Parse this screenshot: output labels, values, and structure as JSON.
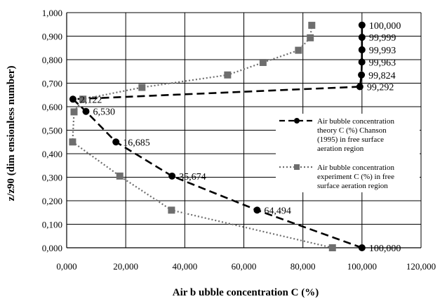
{
  "chart_data": {
    "type": "line",
    "xlabel": "Air b ubble concentration C (%)",
    "ylabel": "z/z90 (dim ensionless number)",
    "xlim": [
      0,
      120000
    ],
    "ylim": [
      0,
      1000
    ],
    "x_ticks": [
      0,
      20000,
      40000,
      60000,
      80000,
      100000,
      120000
    ],
    "y_ticks": [
      0,
      100,
      200,
      300,
      400,
      500,
      600,
      700,
      800,
      900,
      1000
    ],
    "x_tick_labels": [
      "0,000",
      "20,000",
      "40,000",
      "60,000",
      "80,000",
      "100,000",
      "120,000"
    ],
    "y_tick_labels": [
      "0,000",
      "0,100",
      "0,200",
      "0,300",
      "0,400",
      "0,500",
      "0,600",
      "0,700",
      "0,800",
      "0,900",
      "1,000"
    ],
    "grid": "major-both",
    "legend_position": "right",
    "series": [
      {
        "name": "Air bubble concentration theory C (%) Chanson (1995) in free surface aeration region",
        "legend_lines": [
          "Air bubble concentration",
          "theory C (%) Chanson",
          "(1995) in free surface",
          "aeration region"
        ],
        "style": "dashed",
        "marker": "circle",
        "color": "#000000",
        "points": [
          {
            "x": 100000,
            "y": 0,
            "label": "100,000"
          },
          {
            "x": 64494,
            "y": 160,
            "label": "64,494"
          },
          {
            "x": 35674,
            "y": 305,
            "label": "35,674"
          },
          {
            "x": 16685,
            "y": 450,
            "label": "16,685"
          },
          {
            "x": 6530,
            "y": 580,
            "label": "6,530"
          },
          {
            "x": 2122,
            "y": 632,
            "label": "2,122"
          },
          {
            "x": 99292,
            "y": 685,
            "label": "99,292"
          },
          {
            "x": 99824,
            "y": 735,
            "label": "99,824"
          },
          {
            "x": 99963,
            "y": 790,
            "label": "99,963"
          },
          {
            "x": 99993,
            "y": 842,
            "label": "99,993"
          },
          {
            "x": 99999,
            "y": 895,
            "label": "99,999"
          },
          {
            "x": 100000,
            "y": 947,
            "label": "100,000"
          }
        ]
      },
      {
        "name": "Air bubble concentration experiment C (%) in free surface aeration region",
        "legend_lines": [
          "Air bubble concentration",
          "experiment C (%) in free",
          "surface aeration region"
        ],
        "style": "dotted",
        "marker": "square",
        "color": "#6e6e6e",
        "points": [
          {
            "x": 90000,
            "y": 0
          },
          {
            "x": 35500,
            "y": 160
          },
          {
            "x": 18000,
            "y": 305
          },
          {
            "x": 2000,
            "y": 450
          },
          {
            "x": 2500,
            "y": 578
          },
          {
            "x": 5500,
            "y": 632
          },
          {
            "x": 25500,
            "y": 682
          },
          {
            "x": 54500,
            "y": 735
          },
          {
            "x": 66500,
            "y": 788
          },
          {
            "x": 78500,
            "y": 840
          },
          {
            "x": 82500,
            "y": 893
          },
          {
            "x": 83000,
            "y": 946
          }
        ]
      }
    ]
  }
}
